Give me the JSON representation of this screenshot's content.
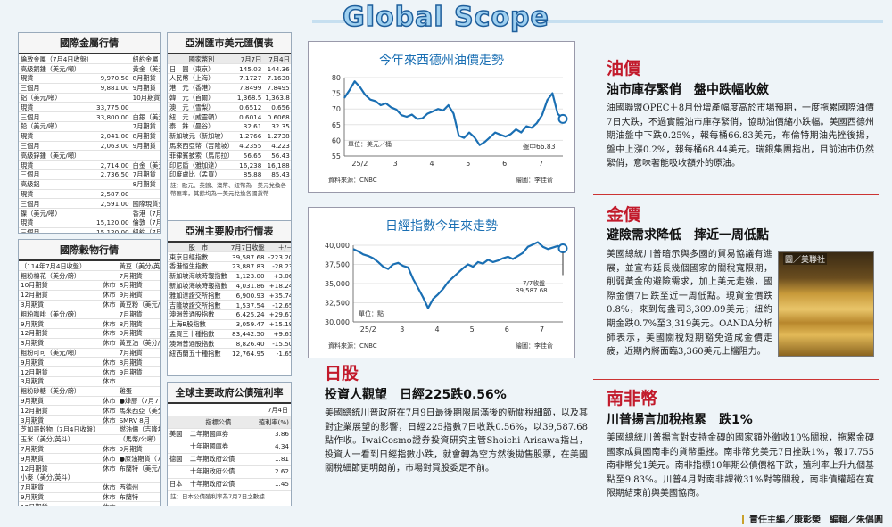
{
  "masthead": "Global Scope",
  "metals": {
    "title": "國際金屬行情",
    "rows": [
      [
        "倫敦金屬（7月4日收盤）",
        "",
        "紐約金屬（7月4日收盤）",
        ""
      ],
      [
        "高級銅鍾（美元/噸）",
        "",
        "黃金（美元/盎司）",
        ""
      ],
      [
        "現貨",
        "9,970.50",
        "8月期貨",
        "休市"
      ],
      [
        "三個月",
        "9,881.00",
        "9月期貨",
        "休市"
      ],
      [
        "鋁（美元/噸）",
        "",
        "10月期貨",
        "休市"
      ],
      [
        "現貨",
        "33,775.00",
        "",
        ""
      ],
      [
        "三個月",
        "33,800.00",
        "白銀（美元/盎司）",
        ""
      ],
      [
        "鉛（美元/噸）",
        "",
        "7月期貨",
        "休市"
      ],
      [
        "現貨",
        "2,041.00",
        "8月期貨",
        "休市"
      ],
      [
        "三個月",
        "2,063.00",
        "9月期貨",
        "休市"
      ],
      [
        "高級鋅鍾（美元/噸）",
        "",
        "",
        ""
      ],
      [
        "現貨",
        "2,714.00",
        "白金（美元/盎司）",
        ""
      ],
      [
        "三個月",
        "2,736.50",
        "7月期貨",
        "休市"
      ],
      [
        "高級鋁",
        "",
        "8月期貨",
        "休市"
      ],
      [
        "現貨",
        "2,587.00",
        "",
        ""
      ],
      [
        "三個月",
        "2,591.00",
        "國際現貨金價",
        ""
      ],
      [
        "鎳（美元/噸）",
        "",
        "香港（7月7日）",
        "3,316.80"
      ],
      [
        "現貨",
        "15,120.00",
        "倫敦（7月4日）",
        "3,331.90"
      ],
      [
        "三個月",
        "15,120.00",
        "紐約（7月4日）",
        "休市"
      ]
    ]
  },
  "fx": {
    "title": "亞洲匯市美元匯價表",
    "headers": [
      "國家幣別",
      "7月7日",
      "7月4日"
    ],
    "rows": [
      [
        "日　圓（東京）",
        "145.03",
        "144.36"
      ],
      [
        "人民幣（上海）",
        "7.1727",
        "7.1638"
      ],
      [
        "港　元（香港）",
        "7.8499",
        "7.8495"
      ],
      [
        "韓　元（首爾）",
        "1,368.5",
        "1,363.8"
      ],
      [
        "澳　元（雪梨）",
        "0.6512",
        "0.656"
      ],
      [
        "紐　元（威靈頓）",
        "0.6014",
        "0.6068"
      ],
      [
        "泰　銖（曼谷）",
        "32.61",
        "32.35"
      ],
      [
        "新加坡元（新加坡）",
        "1.2766",
        "1.2738"
      ],
      [
        "馬來西亞幣（吉隆坡）",
        "4.2355",
        "4.223"
      ],
      [
        "菲律賓披索（馬尼拉）",
        "56.65",
        "56.43"
      ],
      [
        "印尼盾（雅加達）",
        "16,238",
        "16,188"
      ],
      [
        "印度盧比（孟買）",
        "85.88",
        "85.43"
      ]
    ],
    "note": "註：歐元、英鎊、澳幣、紐幣為一美元兌換各幣匯率，其餘均為一美元兌換各國貨幣"
  },
  "grains": {
    "title": "國際穀物行情",
    "rows": [
      [
        "（114年7月4日收盤）",
        "",
        "黃豆（美分/英斗）",
        ""
      ],
      [
        "粗粉棉花（美分/磅）",
        "",
        "7月期貨",
        "休市"
      ],
      [
        "10月期貨",
        "休市",
        "8月期貨",
        "休市"
      ],
      [
        "12月期貨",
        "休市",
        "9月期貨",
        "休市"
      ],
      [
        "3月期貨",
        "休市",
        "黃豆粉（美元/噸）",
        ""
      ],
      [
        "粗粉咖啡（美分/磅）",
        "",
        "7月期貨",
        "休市"
      ],
      [
        "9月期貨",
        "休市",
        "8月期貨",
        "休市"
      ],
      [
        "12月期貨",
        "休市",
        "9月期貨",
        "休市"
      ],
      [
        "3月期貨",
        "休市",
        "黃豆油（美分/磅）",
        ""
      ],
      [
        "粗粉可可（美元/噸）",
        "",
        "7月期貨",
        "休市"
      ],
      [
        "9月期貨",
        "休市",
        "8月期貨",
        "休市"
      ],
      [
        "12月期貨",
        "休市",
        "9月期貨",
        "休市"
      ],
      [
        "3月期貨",
        "休市",
        "",
        ""
      ],
      [
        "粗粉砂糖（美分/磅）",
        "",
        "雞蛋",
        ""
      ],
      [
        "9月期貨",
        "休市",
        "●烽膠（7月7日收盤）",
        ""
      ],
      [
        "12月期貨",
        "休市",
        "馬來西亞（美分/公斤）",
        ""
      ],
      [
        "3月期貨",
        "休市",
        "SMRV 8月",
        "231.75"
      ],
      [
        "芝加哥穀物（7月4日收盤）",
        "",
        "燃油價（吉隆坡）",
        ""
      ],
      [
        "玉米（美分/英斗）",
        "",
        "（馬幣/公噸）",
        ""
      ],
      [
        "7月期貨",
        "休市",
        "9月期貨",
        "67.08"
      ],
      [
        "9月期貨",
        "休市",
        "●原油期貨（7月7日收盤）",
        ""
      ],
      [
        "12月期貨",
        "休市",
        "布蘭特（美元/桶）",
        ""
      ],
      [
        "小麥（美分/英斗）",
        "",
        "",
        "158.98 公升"
      ],
      [
        "7月期貨",
        "休市",
        "西德州",
        "67.08"
      ],
      [
        "9月期貨",
        "休市",
        "布蘭特",
        "63.71"
      ],
      [
        "12月期貨",
        "休市",
        "",
        ""
      ]
    ]
  },
  "stocks": {
    "title": "亞洲主要股市行情表",
    "headers": [
      "股　市",
      "7月7日收盤",
      "＋/－"
    ],
    "rows": [
      [
        "東京日經指數",
        "39,587.68",
        "-223.20"
      ],
      [
        "香港恒生指數",
        "23,887.83",
        "-28.23"
      ],
      [
        "新加坡海峽時報指數",
        "1,123.00",
        "+3.06"
      ],
      [
        "新加坡海峽時報指數",
        "4,031.86",
        "+18.24"
      ],
      [
        "雅加達證交所指數",
        "6,900.93",
        "+35.74"
      ],
      [
        "吉隆坡證交所指數",
        "1,537.54",
        "-12.65"
      ],
      [
        "澳洲普通股指數",
        "6,425.24",
        "+29.67"
      ],
      [
        "上海B股指數",
        "3,059.47",
        "+15.19"
      ],
      [
        "孟買三十種指數",
        "83,442.50",
        "+9.61"
      ],
      [
        "澳洲普通股指數",
        "8,826.40",
        "-15.50"
      ],
      [
        "紐西蘭五十種指數",
        "12,764.95",
        "-1.65"
      ]
    ]
  },
  "gov": {
    "title": "全球主要政府公債殖利率",
    "date": "7月4日",
    "headers": [
      "",
      "指標公債",
      "殖利率(%)"
    ],
    "rows": [
      [
        "美國",
        "二年期國庫券",
        "3.86"
      ],
      [
        "",
        "十年期國庫券",
        "4.34"
      ],
      [
        "德國",
        "二年期政府公債",
        "1.81"
      ],
      [
        "",
        "十年期政府公債",
        "2.62"
      ],
      [
        "日本",
        "十年期政府公債",
        "1.45"
      ]
    ],
    "note": "註：日本公債殖利率為7月7日之數據"
  },
  "oil_chart": {
    "title": "今年來西德州油價走勢",
    "unit": "單位：美元／桶",
    "source": "資料來源：CNBC",
    "credit": "繪圖：李佳俞",
    "end_label": "盤中66.83",
    "chart_data": {
      "type": "line",
      "title": "今年來西德州油價走勢",
      "ylabel": "單位：美元／桶",
      "ylim": [
        55,
        80
      ],
      "yticks": [
        55,
        60,
        65,
        70,
        75,
        80
      ],
      "xticks": [
        "'25/2",
        "3",
        "4",
        "5",
        "6",
        "7"
      ],
      "x": [
        0,
        3,
        6,
        9,
        12,
        15,
        18,
        21,
        24,
        27,
        30,
        33,
        36,
        39,
        42,
        45,
        48,
        51,
        54,
        57,
        60,
        63,
        66,
        69,
        72,
        75,
        78,
        81,
        84,
        87,
        90,
        93,
        96,
        99,
        102,
        105,
        108,
        111,
        114,
        117,
        120,
        123,
        126
      ],
      "values": [
        73.5,
        76,
        78.8,
        77,
        74.5,
        73,
        72.5,
        71.2,
        71.8,
        70.5,
        69.8,
        68,
        67.5,
        68.2,
        66.8,
        67,
        68.5,
        69.2,
        70,
        69.5,
        71.2,
        68.5,
        61.5,
        60.8,
        62.5,
        61,
        58.5,
        59.5,
        61,
        62.5,
        61.8,
        61.2,
        62,
        63.5,
        62.5,
        64.5,
        64,
        65.5,
        68,
        72.8,
        75,
        68.5,
        66.83
      ]
    }
  },
  "nikkei_chart": {
    "title": "日經指數今年來走勢",
    "unit": "單位：點",
    "source": "資料來源：CNBC",
    "credit": "繪圖：李佳俞",
    "end_label_1": "7/7收盤",
    "end_label_2": "39,587.68",
    "chart_data": {
      "type": "line",
      "title": "日經指數今年來走勢",
      "ylabel": "單位：點",
      "ylim": [
        30000,
        40000
      ],
      "yticks": [
        30000,
        32500,
        35000,
        37500,
        40000
      ],
      "xticks": [
        "'25/2",
        "3",
        "4",
        "5",
        "6",
        "7"
      ],
      "x": [
        0,
        3,
        6,
        9,
        12,
        15,
        18,
        21,
        24,
        27,
        30,
        33,
        36,
        39,
        42,
        45,
        48,
        51,
        54,
        57,
        60,
        63,
        66,
        69,
        72,
        75,
        78,
        81,
        84,
        87,
        90,
        93,
        96,
        99,
        102,
        105,
        108,
        111,
        114,
        117,
        120,
        123,
        126
      ],
      "values": [
        39500,
        39200,
        38800,
        38600,
        38300,
        37800,
        37200,
        36900,
        37500,
        37700,
        37300,
        37100,
        35600,
        34400,
        33200,
        31800,
        33000,
        33600,
        34300,
        35200,
        35800,
        36400,
        37000,
        37500,
        37200,
        37800,
        37600,
        38100,
        37800,
        38000,
        38300,
        38500,
        38200,
        38600,
        39000,
        39800,
        40100,
        40400,
        39800,
        39500,
        39700,
        39900,
        39587.68
      ]
    }
  },
  "oil": {
    "heading": "油價",
    "subhead": "油市庫存緊俏　盤中跌幅收斂",
    "body": "油國聯盟OPEC＋8月份增產幅度高於市場預期，一度拖累國際油價7日大跌，不過實體油市庫存緊俏，協助油價縮小跌幅。美國西德州期油盤中下跌0.25%，報每桶66.83美元，布倫特期油先挫後揚，盤中上漲0.2%，報每桶68.44美元。瑞銀集團指出，目前油市仍然緊俏，意味著能吸收額外的原油。"
  },
  "nikkei": {
    "heading": "日股",
    "subhead": "投資人觀望　日經225跌0.56%",
    "body": "美國總統川普政府在7月9日最後期限屆滿後的新關稅細節，以及其對企業展望的影響，日經225指數7日收跌0.56%，以39,587.68點作收。IwaiCosmo證券投資研究主管Shoichi Arisawa指出，投資人一看到日經指數小跌，就會轉為空方然後拋售股票，在美國關稅細節更明朗前，市場對買股委足不前。"
  },
  "gold": {
    "heading": "金價",
    "subhead": "避險需求降低　摔近一周低點",
    "body": "美國總統川普暗示與多國的貿易協議有進展，並宣布延長幾個國家的關稅寬限期，削弱黃金的避險需求，加上美元走強，國際金價7日跌至近一周低點。現貨金價跌0.8%，來到每盎司3,309.09美元；紐約期金跌0.7%至3,319美元。OANDA分析師表示，美國關稅短期豁免造成金價走疲，近期內將面臨3,360美元上檔阻力。",
    "photo_credit": "圖／美聯社"
  },
  "zar": {
    "heading": "南非幣",
    "subhead": "川普揚言加稅拖累　跌1%",
    "body": "美國總統川普揚言對支持金磚的國家額外徵收10%關稅，拖累金磚國家成員國南非的貨幣重挫。南非幣兌美元7日挫跌1%，報17.755南非幣兌1美元。南非指標10年期公債價格下跌，殖利率上升九個基點至9.83%。川普4月對南非課徵31%對等關稅，南非債權超在寬限期結束前與美國協商。"
  },
  "footer": "責任主編／康彰榮　編輯／朱倡圓",
  "colors": {
    "accent": "#c21a2b",
    "chart_line": "#1a6fb3",
    "title_blue": "#1a6fb3"
  }
}
